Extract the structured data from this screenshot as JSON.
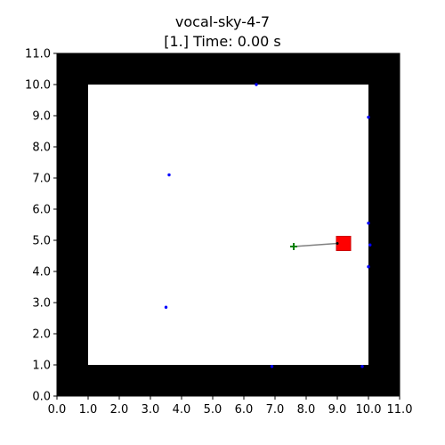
{
  "header": {
    "name": "vocal-sky-4-7",
    "status": "[1.] Time: 0.00 s"
  },
  "colors": {
    "wall": "#000000",
    "floor": "#ffffff",
    "dots": "#0000ff",
    "agent": "#ff0000",
    "target": "#008000",
    "heading_line": "#808080"
  },
  "chart_data": {
    "type": "scatter",
    "xlim": [
      0,
      11
    ],
    "ylim": [
      0,
      11
    ],
    "x_ticks": [
      "0.0",
      "1.0",
      "2.0",
      "3.0",
      "4.0",
      "5.0",
      "6.0",
      "7.0",
      "8.0",
      "9.0",
      "10.0",
      "11.0"
    ],
    "y_ticks": [
      "0.0",
      "1.0",
      "2.0",
      "3.0",
      "4.0",
      "5.0",
      "6.0",
      "7.0",
      "8.0",
      "9.0",
      "10.0",
      "11.0"
    ],
    "wall": {
      "outer": [
        0,
        11
      ],
      "inner": [
        1,
        10
      ]
    },
    "dots": [
      {
        "x": 6.4,
        "y": 10.0
      },
      {
        "x": 10.0,
        "y": 8.95
      },
      {
        "x": 3.6,
        "y": 7.1
      },
      {
        "x": 10.0,
        "y": 5.55
      },
      {
        "x": 10.05,
        "y": 4.85
      },
      {
        "x": 10.0,
        "y": 4.15
      },
      {
        "x": 3.5,
        "y": 2.85
      },
      {
        "x": 6.9,
        "y": 0.95
      },
      {
        "x": 9.8,
        "y": 0.95
      }
    ],
    "agent": {
      "x": 9.2,
      "y": 4.9
    },
    "target": {
      "x": 7.6,
      "y": 4.8
    },
    "heading_from": {
      "x": 9.0,
      "y": 4.9
    }
  }
}
